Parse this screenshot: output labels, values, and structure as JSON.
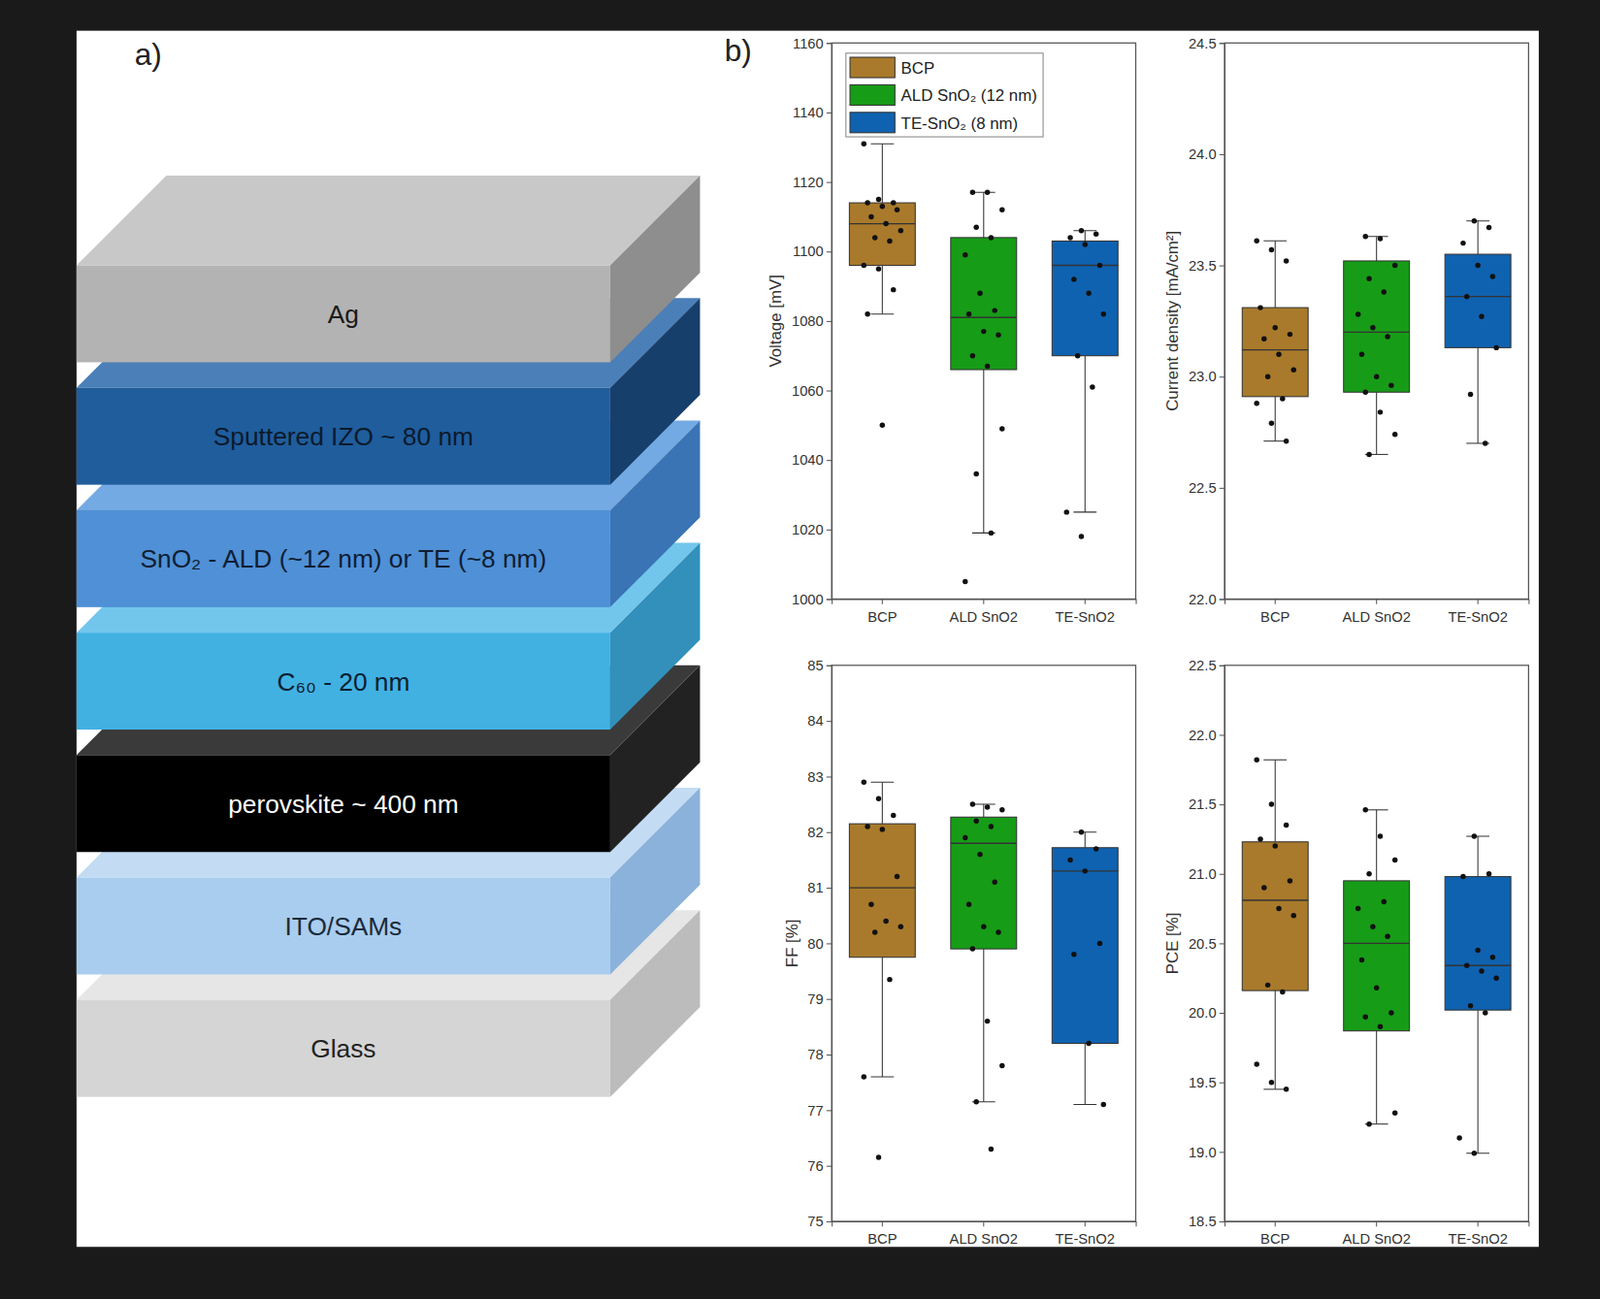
{
  "panel_a": {
    "label": "a)",
    "layers": [
      "Ag",
      "Sputtered  IZO ~ 80 nm",
      "SnO₂ - ALD (~12 nm) or TE (~8 nm)",
      "C₆₀ - 20 nm",
      "perovskite ~ 400 nm",
      "ITO/SAMs",
      "Glass"
    ]
  },
  "panel_b": {
    "label": "b)"
  },
  "chart_data": [
    {
      "type": "box",
      "y_label": "Voltage [mV]",
      "legend": "upper left",
      "categories": [
        "BCP",
        "ALD SnO2",
        "TE-SnO2"
      ],
      "ylim": [
        1000,
        1160
      ],
      "yticks": [
        1000,
        1020,
        1040,
        1060,
        1080,
        1100,
        1120,
        1140,
        1160
      ],
      "boxes": [
        {
          "name": "BCP",
          "color": "#a97a2b",
          "low": 1082,
          "q1": 1096,
          "median": 1108,
          "q3": 1114,
          "high": 1131,
          "points": [
            1131,
            1115,
            1114,
            1114,
            1113,
            1112,
            1110,
            1108,
            1106,
            1104,
            1103,
            1096,
            1095,
            1089,
            1082,
            1050
          ]
        },
        {
          "name": "ALD SnO₂ (12 nm)",
          "color": "#179c17",
          "low": 1019,
          "q1": 1066,
          "median": 1081,
          "q3": 1104,
          "high": 1117,
          "points": [
            1117,
            1117,
            1112,
            1107,
            1104,
            1099,
            1088,
            1083,
            1082,
            1077,
            1076,
            1070,
            1067,
            1049,
            1036,
            1019,
            1005
          ]
        },
        {
          "name": "TE-SnO₂ (8 nm)",
          "color": "#0f62b0",
          "low": 1025,
          "q1": 1070,
          "median": 1096,
          "q3": 1103,
          "high": 1106,
          "points": [
            1106,
            1105,
            1104,
            1102,
            1096,
            1092,
            1088,
            1082,
            1070,
            1061,
            1025,
            1018
          ]
        }
      ]
    },
    {
      "type": "box",
      "y_label": "Current density [mA/cm²]",
      "categories": [
        "BCP",
        "ALD SnO2",
        "TE-SnO2"
      ],
      "ylim": [
        22.0,
        24.5
      ],
      "yticks": [
        {
          "value": 22,
          "label": "22.0"
        },
        {
          "value": 22.5,
          "label": "22.5"
        },
        {
          "value": 23,
          "label": "23.0"
        },
        {
          "value": 23.5,
          "label": "23.5"
        },
        {
          "value": 24,
          "label": "24.0"
        },
        {
          "value": 24.5,
          "label": "24.5"
        }
      ],
      "boxes": [
        {
          "color": "#a97a2b",
          "low": 22.71,
          "q1": 22.91,
          "median": 23.12,
          "q3": 23.31,
          "high": 23.61,
          "points": [
            23.61,
            23.57,
            23.52,
            23.31,
            23.22,
            23.19,
            23.17,
            23.1,
            23.03,
            23.0,
            22.9,
            22.88,
            22.79,
            22.71
          ]
        },
        {
          "color": "#179c17",
          "low": 22.65,
          "q1": 22.93,
          "median": 23.2,
          "q3": 23.52,
          "high": 23.63,
          "points": [
            23.63,
            23.62,
            23.5,
            23.44,
            23.38,
            23.28,
            23.22,
            23.18,
            23.1,
            23.0,
            22.96,
            22.93,
            22.84,
            22.74,
            22.65
          ]
        },
        {
          "color": "#0f62b0",
          "low": 22.7,
          "q1": 23.13,
          "median": 23.36,
          "q3": 23.55,
          "high": 23.7,
          "points": [
            23.7,
            23.67,
            23.6,
            23.5,
            23.45,
            23.36,
            23.27,
            23.13,
            22.92,
            22.7
          ]
        }
      ]
    },
    {
      "type": "box",
      "y_label": "FF [%]",
      "categories": [
        "BCP",
        "ALD SnO2",
        "TE-SnO2"
      ],
      "ylim": [
        75,
        85
      ],
      "yticks": [
        75,
        76,
        77,
        78,
        79,
        80,
        81,
        82,
        83,
        84,
        85
      ],
      "boxes": [
        {
          "color": "#a97a2b",
          "low": 77.6,
          "q1": 79.75,
          "median": 81.0,
          "q3": 82.15,
          "high": 82.9,
          "points": [
            82.9,
            82.6,
            82.3,
            82.1,
            82.05,
            81.2,
            80.7,
            80.4,
            80.3,
            80.2,
            79.35,
            77.6,
            76.15
          ]
        },
        {
          "color": "#179c17",
          "low": 77.15,
          "q1": 79.9,
          "median": 81.8,
          "q3": 82.27,
          "high": 82.5,
          "points": [
            82.5,
            82.45,
            82.4,
            82.2,
            82.1,
            81.9,
            81.6,
            81.1,
            80.7,
            80.3,
            80.2,
            79.9,
            78.6,
            77.8,
            77.15,
            76.3
          ]
        },
        {
          "color": "#0f62b0",
          "low": 77.1,
          "q1": 78.2,
          "median": 81.3,
          "q3": 81.72,
          "high": 82.0,
          "points": [
            82.0,
            81.7,
            81.5,
            81.3,
            80.0,
            79.8,
            78.2,
            77.1
          ]
        }
      ]
    },
    {
      "type": "box",
      "y_label": "PCE [%]",
      "categories": [
        "BCP",
        "ALD SnO2",
        "TE-SnO2"
      ],
      "ylim": [
        18.5,
        22.5
      ],
      "yticks": [
        {
          "value": 18.5,
          "label": "18.5"
        },
        {
          "value": 19,
          "label": "19.0"
        },
        {
          "value": 19.5,
          "label": "19.5"
        },
        {
          "value": 20,
          "label": "20.0"
        },
        {
          "value": 20.5,
          "label": "20.5"
        },
        {
          "value": 21,
          "label": "21.0"
        },
        {
          "value": 21.5,
          "label": "21.5"
        },
        {
          "value": 22,
          "label": "22.0"
        },
        {
          "value": 22.5,
          "label": "22.5"
        }
      ],
      "boxes": [
        {
          "color": "#a97a2b",
          "low": 19.45,
          "q1": 20.16,
          "median": 20.81,
          "q3": 21.23,
          "high": 21.82,
          "points": [
            21.82,
            21.5,
            21.35,
            21.25,
            21.2,
            20.95,
            20.9,
            20.75,
            20.7,
            20.2,
            20.15,
            19.63,
            19.5,
            19.45
          ]
        },
        {
          "color": "#179c17",
          "low": 19.2,
          "q1": 19.87,
          "median": 20.5,
          "q3": 20.95,
          "high": 21.46,
          "points": [
            21.46,
            21.27,
            21.1,
            21.0,
            20.8,
            20.75,
            20.62,
            20.55,
            20.38,
            20.18,
            20.0,
            19.97,
            19.9,
            19.28,
            19.2
          ]
        },
        {
          "color": "#0f62b0",
          "low": 18.99,
          "q1": 20.02,
          "median": 20.34,
          "q3": 20.98,
          "high": 21.27,
          "points": [
            21.27,
            21.0,
            20.98,
            20.45,
            20.4,
            20.34,
            20.3,
            20.25,
            20.05,
            20.0,
            19.1,
            18.99
          ]
        }
      ]
    }
  ]
}
